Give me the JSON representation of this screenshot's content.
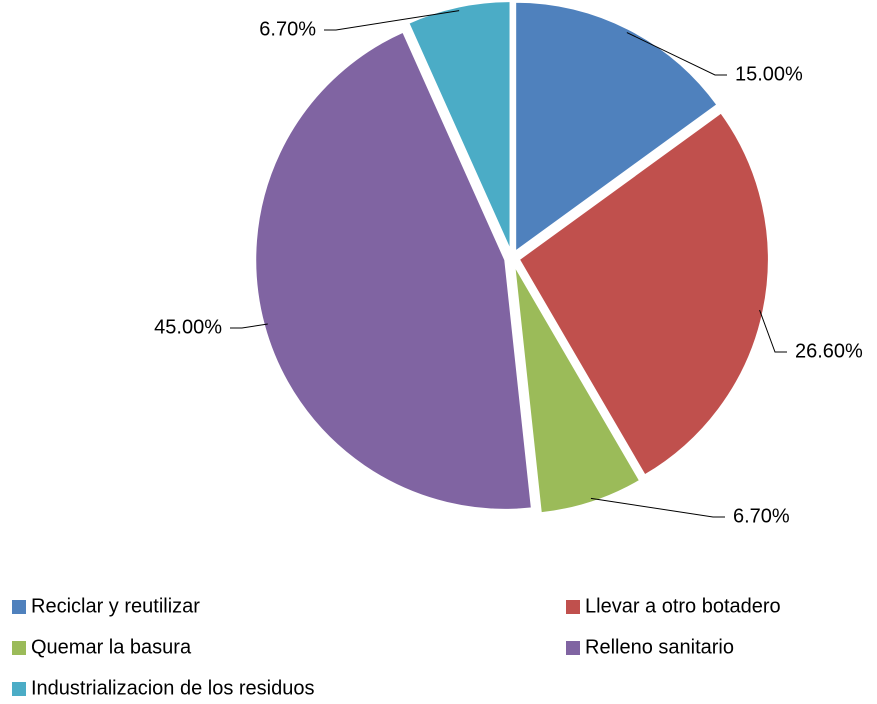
{
  "chart_data": {
    "type": "pie",
    "categories": [
      "Reciclar y reutilizar",
      "Llevar a otro botadero",
      "Quemar la basura",
      "Relleno sanitario",
      "Industrializacion de los residuos"
    ],
    "values": [
      15,
      26.6,
      6.7,
      45,
      6.7
    ],
    "value_labels": [
      "15.00%",
      "26.60%",
      "6.70%",
      "45.00%",
      "6.70%"
    ],
    "colors": [
      "#4f81bd",
      "#c0504d",
      "#9bbb59",
      "#8064a2",
      "#4bacc6"
    ],
    "legend": "bottom"
  }
}
